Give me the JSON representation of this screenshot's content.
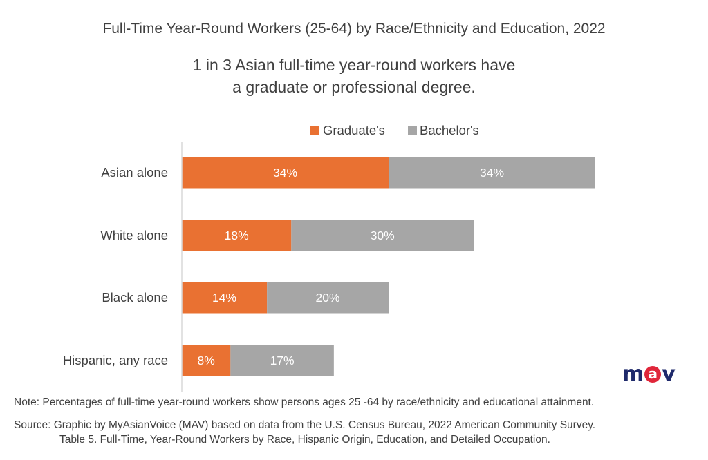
{
  "title": "Full-Time Year-Round Workers (25-64) by Race/Ethnicity and Education, 2022",
  "subtitle_line1": "1 in 3 Asian full-time year-round workers have",
  "subtitle_line2": "a graduate or professional degree.",
  "note": "Note: Percentages of full-time year-round workers show persons ages 25 -64 by race/ethnicity and educational attainment.",
  "source_line1": "Source: Graphic by MyAsianVoice (MAV) based on data from the  U.S. Census Bureau, 2022 American Community Survey.",
  "source_line2": "Table 5. Full-Time, Year-Round Workers by Race, Hispanic Origin, Education, and Detailed Occupation.",
  "logo": {
    "m": "m",
    "a": "a",
    "v": "v",
    "color": "#1f2a6b",
    "accent": "#e0263a"
  },
  "colors": {
    "graduate": "#e97132",
    "bachelor": "#a6a6a6",
    "axis": "#d9d9d9",
    "text": "#404040",
    "bar_label": "#ffffff"
  },
  "chart_data": {
    "type": "bar",
    "orientation": "horizontal",
    "stacked": true,
    "title": "Full-Time Year-Round Workers (25-64) by Race/Ethnicity and Education, 2022",
    "categories": [
      "Asian alone",
      "White alone",
      "Black alone",
      "Hispanic, any race"
    ],
    "series": [
      {
        "name": "Graduate's",
        "values": [
          34,
          18,
          14,
          8
        ],
        "labels": [
          "34%",
          "18%",
          "14%",
          "8%"
        ]
      },
      {
        "name": "Bachelor's",
        "values": [
          34,
          30,
          20,
          17
        ],
        "labels": [
          "34%",
          "30%",
          "20%",
          "17%"
        ]
      }
    ],
    "xlim": [
      0,
      70
    ],
    "legend": "top-center",
    "grid": false
  }
}
